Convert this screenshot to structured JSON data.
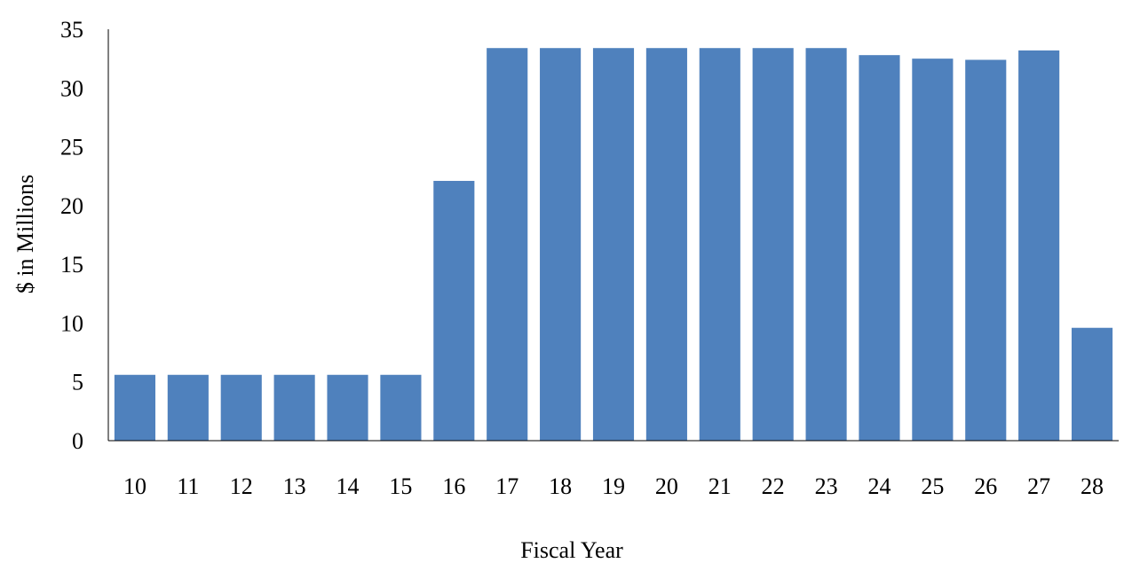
{
  "chart_data": {
    "type": "bar",
    "title": "",
    "xlabel": "Fiscal Year",
    "ylabel": "$ in Millions",
    "categories": [
      "10",
      "11",
      "12",
      "13",
      "14",
      "15",
      "16",
      "17",
      "18",
      "19",
      "20",
      "21",
      "22",
      "23",
      "24",
      "25",
      "26",
      "27",
      "28"
    ],
    "values": [
      5.6,
      5.6,
      5.6,
      5.6,
      5.6,
      5.6,
      22.1,
      33.4,
      33.4,
      33.4,
      33.4,
      33.4,
      33.4,
      33.4,
      32.8,
      32.5,
      32.4,
      33.2,
      9.6
    ],
    "ylim": [
      0,
      35
    ],
    "yticks": [
      "0",
      "5",
      "10",
      "15",
      "20",
      "25",
      "30",
      "35"
    ],
    "grid": false,
    "legend": "none",
    "bar_color": "#4f81bd"
  }
}
